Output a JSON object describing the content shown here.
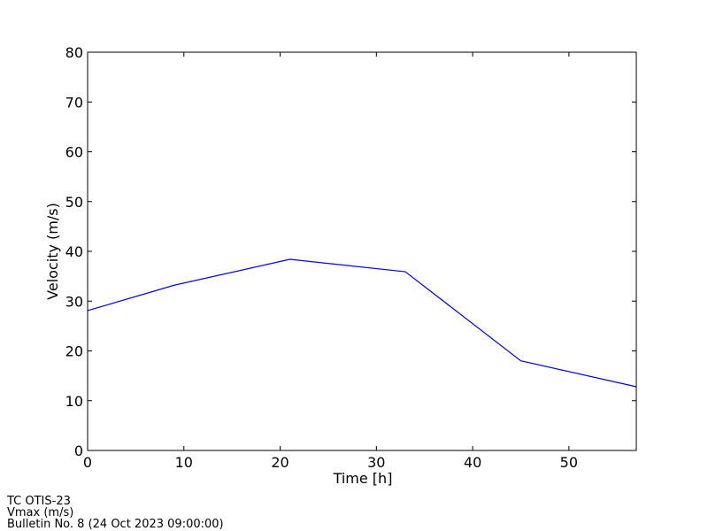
{
  "chart_data": {
    "type": "line",
    "x": [
      0,
      9,
      21,
      33,
      45,
      57
    ],
    "series": [
      {
        "name": "Vmax",
        "color": "#0000ff",
        "values": [
          28.1,
          33.2,
          38.4,
          35.9,
          18.0,
          12.8
        ]
      }
    ],
    "xlim": [
      0,
      57
    ],
    "xticks": [
      0,
      10,
      20,
      30,
      40,
      50
    ],
    "ylim": [
      0,
      80
    ],
    "yticks": [
      0,
      10,
      20,
      30,
      40,
      50,
      60,
      70,
      80
    ],
    "xlabel": "Time [h]",
    "ylabel": "Velocity (m/s)",
    "footer": [
      "TC OTIS-23",
      "Vmax (m/s)",
      "Bulletin No. 8 (24 Oct 2023  09:00:00)"
    ]
  }
}
